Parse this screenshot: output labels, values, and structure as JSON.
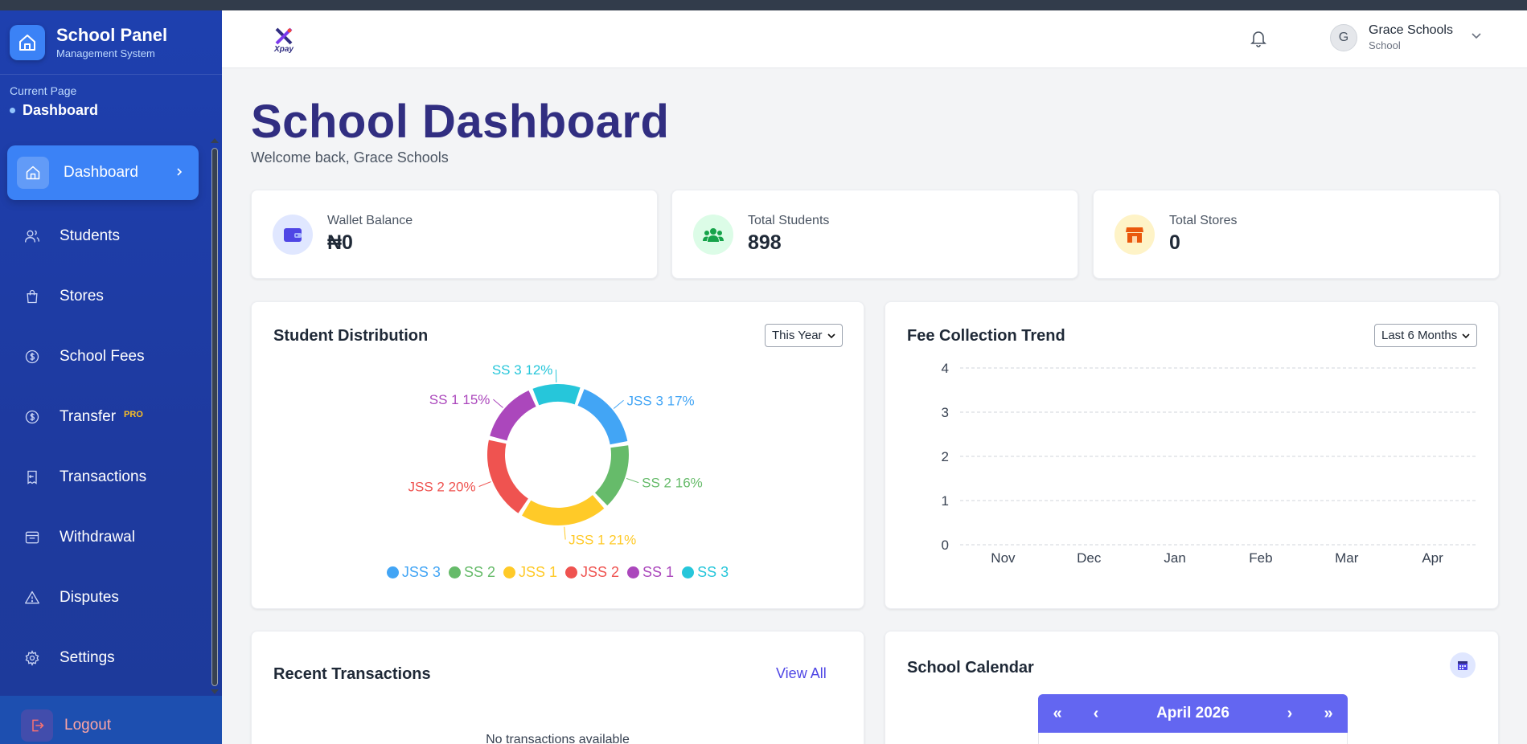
{
  "sidebar": {
    "brand_title": "School Panel",
    "brand_sub": "Management System",
    "current_label": "Current Page",
    "current_value": "Dashboard",
    "items": [
      {
        "label": "Dashboard",
        "icon": "home-icon",
        "active": true
      },
      {
        "label": "Students",
        "icon": "users-icon"
      },
      {
        "label": "Stores",
        "icon": "shopping-bag-icon"
      },
      {
        "label": "School Fees",
        "icon": "dollar-circle-icon"
      },
      {
        "label": "Transfer",
        "icon": "dollar-circle-icon",
        "badge": "PRO"
      },
      {
        "label": "Transactions",
        "icon": "receipt-icon"
      },
      {
        "label": "Withdrawal",
        "icon": "inbox-icon"
      },
      {
        "label": "Disputes",
        "icon": "alert-triangle-icon"
      },
      {
        "label": "Settings",
        "icon": "gear-icon"
      }
    ],
    "logout": "Logout"
  },
  "header": {
    "logo_text": "Xpay",
    "user_initial": "G",
    "user_name": "Grace Schools",
    "user_role": "School"
  },
  "main": {
    "title": "School Dashboard",
    "welcome": "Welcome back, Grace Schools"
  },
  "stats": [
    {
      "label": "Wallet Balance",
      "value": "₦0",
      "icon": "wallet-icon",
      "color": "#4f46e5",
      "bg": "#e0e7ff"
    },
    {
      "label": "Total Students",
      "value": "898",
      "icon": "users-group-icon",
      "color": "#16a34a",
      "bg": "#dcfce7"
    },
    {
      "label": "Total Stores",
      "value": "0",
      "icon": "store-icon",
      "color": "#ea580c",
      "bg": "#fef3c7"
    }
  ],
  "distribution": {
    "title": "Student Distribution",
    "filter": "This Year"
  },
  "trend": {
    "title": "Fee Collection Trend",
    "filter": "Last 6 Months"
  },
  "transactions": {
    "title": "Recent Transactions",
    "view_all": "View All",
    "empty": "No transactions available"
  },
  "calendar": {
    "title": "School Calendar",
    "month": "April 2026",
    "nav": [
      "«",
      "‹",
      "›",
      "»"
    ]
  },
  "chart_data": [
    {
      "type": "pie",
      "title": "Student Distribution",
      "categories": [
        "JSS 3",
        "SS 2",
        "JSS 1",
        "JSS 2",
        "SS 1",
        "SS 3"
      ],
      "values": [
        17,
        16,
        21,
        20,
        15,
        12
      ],
      "labels": [
        "JSS 3 17%",
        "SS 2 16%",
        "JSS 1 21%",
        "JSS 2 20%",
        "SS 1 15%",
        "SS 3 12%"
      ],
      "colors": [
        "#42a5f5",
        "#66bb6a",
        "#ffca28",
        "#ef5350",
        "#ab47bc",
        "#26c6da"
      ],
      "legend": "bottom"
    },
    {
      "type": "line",
      "title": "Fee Collection Trend",
      "categories": [
        "Nov",
        "Dec",
        "Jan",
        "Feb",
        "Mar",
        "Apr"
      ],
      "values": [
        0,
        0,
        0,
        0,
        0,
        0
      ],
      "yticks": [
        "0",
        "1",
        "2",
        "3",
        "4"
      ],
      "ylim": [
        0,
        4
      ],
      "grid": true
    }
  ]
}
